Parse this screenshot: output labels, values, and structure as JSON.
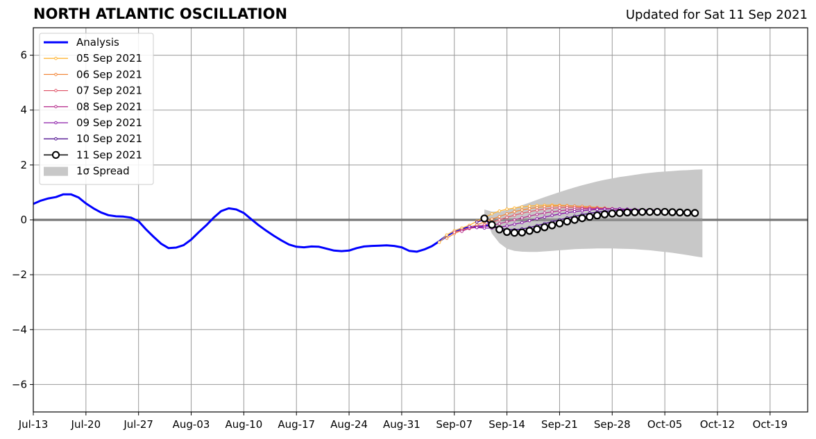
{
  "header": {
    "title": "NORTH ATLANTIC OSCILLATION",
    "updated": "Updated for Sat 11 Sep 2021"
  },
  "chart_data": {
    "type": "line",
    "title": "NORTH ATLANTIC OSCILLATION",
    "subtitle": "Updated for Sat 11 Sep 2021",
    "xlabel": "",
    "ylabel": "",
    "x_range": [
      "2021-07-13",
      "2021-10-24"
    ],
    "ylim": [
      -7,
      7
    ],
    "x_ticks": [
      "Jul-13",
      "Jul-20",
      "Jul-27",
      "Aug-03",
      "Aug-10",
      "Aug-17",
      "Aug-24",
      "Aug-31",
      "Sep-07",
      "Sep-14",
      "Sep-21",
      "Sep-28",
      "Oct-05",
      "Oct-12",
      "Oct-19"
    ],
    "y_ticks": [
      "6",
      "4",
      "2",
      "0",
      "−2",
      "−4",
      "−6"
    ],
    "grid": true,
    "zero_line": true,
    "legend_position": "top-left",
    "colors": {
      "analysis": "#0000ff",
      "spread": "#c8c8c8",
      "grid": "#999999",
      "zero_line": "#555555"
    },
    "analysis": {
      "name": "Analysis",
      "points": [
        [
          "2021-07-13",
          0.58
        ],
        [
          "2021-07-14",
          0.7
        ],
        [
          "2021-07-15",
          0.78
        ],
        [
          "2021-07-16",
          0.83
        ],
        [
          "2021-07-17",
          0.93
        ],
        [
          "2021-07-18",
          0.93
        ],
        [
          "2021-07-19",
          0.82
        ],
        [
          "2021-07-20",
          0.6
        ],
        [
          "2021-07-21",
          0.42
        ],
        [
          "2021-07-22",
          0.27
        ],
        [
          "2021-07-23",
          0.17
        ],
        [
          "2021-07-24",
          0.13
        ],
        [
          "2021-07-25",
          0.12
        ],
        [
          "2021-07-26",
          0.08
        ],
        [
          "2021-07-27",
          -0.05
        ],
        [
          "2021-07-28",
          -0.35
        ],
        [
          "2021-07-29",
          -0.62
        ],
        [
          "2021-07-30",
          -0.87
        ],
        [
          "2021-07-31",
          -1.03
        ],
        [
          "2021-08-01",
          -1.01
        ],
        [
          "2021-08-02",
          -0.92
        ],
        [
          "2021-08-03",
          -0.72
        ],
        [
          "2021-08-04",
          -0.45
        ],
        [
          "2021-08-05",
          -0.2
        ],
        [
          "2021-08-06",
          0.08
        ],
        [
          "2021-08-07",
          0.32
        ],
        [
          "2021-08-08",
          0.42
        ],
        [
          "2021-08-09",
          0.38
        ],
        [
          "2021-08-10",
          0.25
        ],
        [
          "2021-08-11",
          0.02
        ],
        [
          "2021-08-12",
          -0.2
        ],
        [
          "2021-08-13",
          -0.4
        ],
        [
          "2021-08-14",
          -0.58
        ],
        [
          "2021-08-15",
          -0.75
        ],
        [
          "2021-08-16",
          -0.9
        ],
        [
          "2021-08-17",
          -0.98
        ],
        [
          "2021-08-18",
          -1.0
        ],
        [
          "2021-08-19",
          -0.97
        ],
        [
          "2021-08-20",
          -0.98
        ],
        [
          "2021-08-21",
          -1.05
        ],
        [
          "2021-08-22",
          -1.12
        ],
        [
          "2021-08-23",
          -1.14
        ],
        [
          "2021-08-24",
          -1.12
        ],
        [
          "2021-08-25",
          -1.03
        ],
        [
          "2021-08-26",
          -0.97
        ],
        [
          "2021-08-27",
          -0.95
        ],
        [
          "2021-08-28",
          -0.94
        ],
        [
          "2021-08-29",
          -0.93
        ],
        [
          "2021-08-30",
          -0.95
        ],
        [
          "2021-08-31",
          -1.0
        ],
        [
          "2021-09-01",
          -1.13
        ],
        [
          "2021-09-02",
          -1.16
        ],
        [
          "2021-09-03",
          -1.08
        ],
        [
          "2021-09-04",
          -0.96
        ],
        [
          "2021-09-05",
          -0.78
        ],
        [
          "2021-09-06",
          -0.58
        ],
        [
          "2021-09-07",
          -0.42
        ],
        [
          "2021-09-08",
          -0.32
        ],
        [
          "2021-09-09",
          -0.27
        ],
        [
          "2021-09-10",
          -0.24
        ],
        [
          "2021-09-11",
          -0.22
        ],
        [
          "2021-09-12",
          -0.2
        ]
      ]
    },
    "series": [
      {
        "name": "05 Sep 2021",
        "color": "#ffb433",
        "start": "2021-09-05",
        "values": [
          -0.82,
          -0.55,
          -0.4,
          -0.3,
          -0.2,
          -0.05,
          0.08,
          0.22,
          0.32,
          0.39,
          0.43,
          0.47,
          0.5,
          0.52,
          0.53,
          0.54,
          0.53,
          0.52,
          0.5,
          0.48,
          0.46,
          0.44,
          0.42,
          0.4,
          0.38,
          0.37,
          0.36
        ]
      },
      {
        "name": "06 Sep 2021",
        "color": "#f2883c",
        "start": "2021-09-06",
        "values": [
          -0.67,
          -0.5,
          -0.38,
          -0.28,
          -0.18,
          -0.08,
          0.03,
          0.12,
          0.22,
          0.3,
          0.36,
          0.41,
          0.45,
          0.48,
          0.5,
          0.51,
          0.51,
          0.5,
          0.49,
          0.47,
          0.45,
          0.43,
          0.41,
          0.39,
          0.37,
          0.36,
          0.35
        ]
      },
      {
        "name": "07 Sep 2021",
        "color": "#e05a6e",
        "start": "2021-09-07",
        "values": [
          -0.45,
          -0.38,
          -0.32,
          -0.25,
          -0.18,
          -0.09,
          0.0,
          0.09,
          0.17,
          0.24,
          0.3,
          0.35,
          0.39,
          0.42,
          0.44,
          0.45,
          0.45,
          0.44,
          0.43,
          0.42,
          0.41,
          0.4,
          0.38,
          0.37,
          0.36,
          0.35,
          0.34
        ]
      },
      {
        "name": "08 Sep 2021",
        "color": "#b8328f",
        "start": "2021-09-08",
        "values": [
          -0.42,
          -0.3,
          -0.28,
          -0.25,
          -0.2,
          -0.14,
          -0.07,
          0.0,
          0.07,
          0.14,
          0.2,
          0.25,
          0.29,
          0.33,
          0.36,
          0.38,
          0.4,
          0.41,
          0.41,
          0.41,
          0.4,
          0.39,
          0.38,
          0.37,
          0.36,
          0.35,
          0.34
        ]
      },
      {
        "name": "09 Sep 2021",
        "color": "#8a1aa8",
        "start": "2021-09-09",
        "values": [
          -0.25,
          -0.28,
          -0.3,
          -0.3,
          -0.27,
          -0.22,
          -0.16,
          -0.1,
          -0.03,
          0.04,
          0.1,
          0.16,
          0.21,
          0.26,
          0.3,
          0.33,
          0.36,
          0.38,
          0.39,
          0.4,
          0.4,
          0.39,
          0.38,
          0.37,
          0.36,
          0.35,
          0.34
        ]
      },
      {
        "name": "10 Sep 2021",
        "color": "#4d0d8f",
        "start": "2021-09-10",
        "values": [
          -0.08,
          0.0,
          -0.2,
          -0.3,
          -0.35,
          -0.36,
          -0.33,
          -0.28,
          -0.21,
          -0.14,
          -0.07,
          0.0,
          0.07,
          0.13,
          0.19,
          0.24,
          0.28,
          0.31,
          0.33,
          0.35,
          0.36,
          0.36,
          0.35,
          0.34,
          0.33,
          0.32,
          0.31
        ]
      },
      {
        "name": "11 Sep 2021",
        "color": "#000000",
        "start": "2021-09-11",
        "values": [
          0.05,
          -0.18,
          -0.35,
          -0.44,
          -0.47,
          -0.46,
          -0.4,
          -0.34,
          -0.27,
          -0.2,
          -0.13,
          -0.06,
          0.0,
          0.06,
          0.11,
          0.16,
          0.2,
          0.23,
          0.25,
          0.27,
          0.28,
          0.29,
          0.29,
          0.29,
          0.29,
          0.28,
          0.27,
          0.26,
          0.25
        ]
      }
    ],
    "spread": {
      "name": "1σ Spread",
      "start": "2021-09-11",
      "upper": [
        0.38,
        0.3,
        0.3,
        0.36,
        0.44,
        0.53,
        0.63,
        0.73,
        0.83,
        0.92,
        1.01,
        1.1,
        1.18,
        1.26,
        1.33,
        1.4,
        1.46,
        1.51,
        1.56,
        1.6,
        1.64,
        1.68,
        1.71,
        1.74,
        1.76,
        1.78,
        1.8,
        1.81,
        1.83,
        1.84
      ],
      "lower": [
        0.2,
        -0.5,
        -0.85,
        -1.05,
        -1.13,
        -1.16,
        -1.17,
        -1.17,
        -1.15,
        -1.13,
        -1.11,
        -1.09,
        -1.07,
        -1.06,
        -1.05,
        -1.04,
        -1.04,
        -1.04,
        -1.05,
        -1.06,
        -1.07,
        -1.09,
        -1.11,
        -1.14,
        -1.17,
        -1.2,
        -1.24,
        -1.28,
        -1.33,
        -1.37
      ]
    },
    "legend": [
      "Analysis",
      "05 Sep 2021",
      "06 Sep 2021",
      "07 Sep 2021",
      "08 Sep 2021",
      "09 Sep 2021",
      "10 Sep 2021",
      "11 Sep 2021",
      "1σ Spread"
    ]
  }
}
